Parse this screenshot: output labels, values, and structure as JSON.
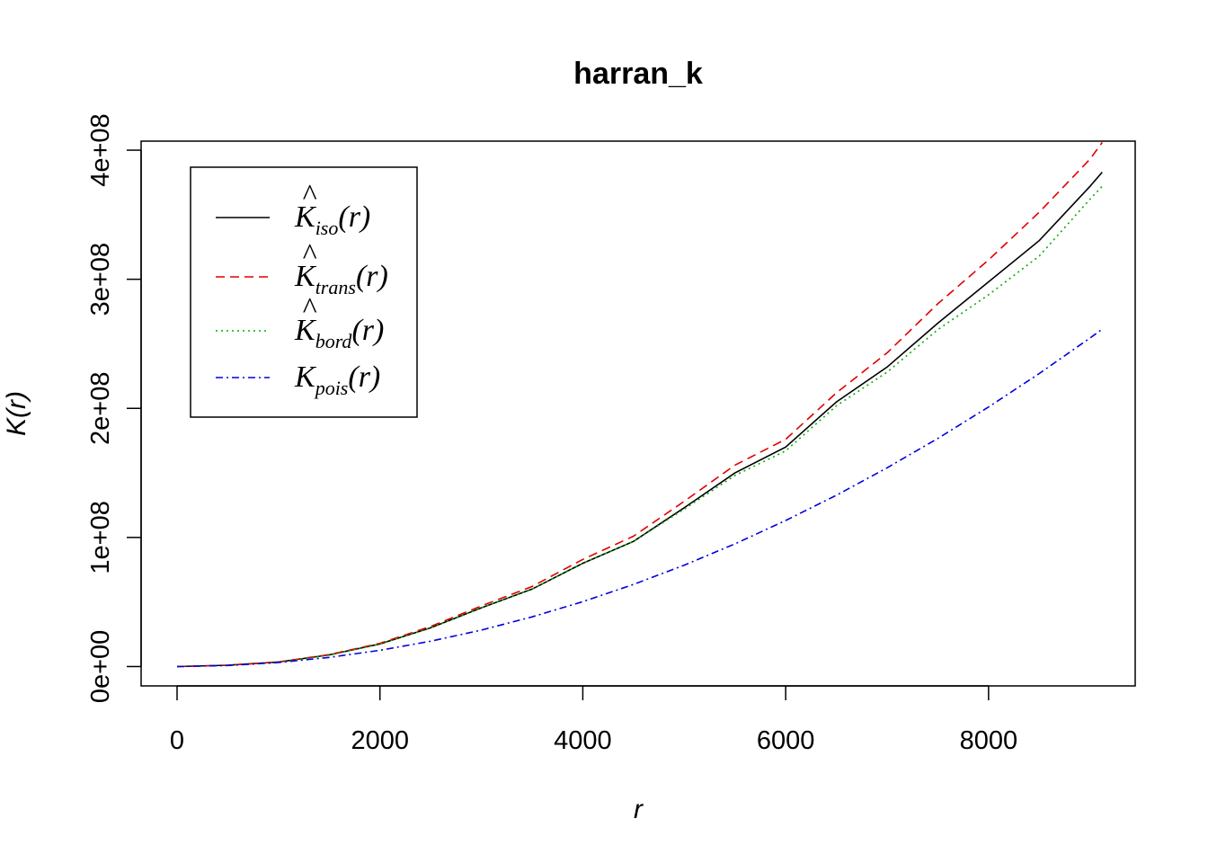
{
  "chart_data": {
    "type": "line",
    "title": "harran_k",
    "xlabel": "r",
    "ylabel": "K(r)",
    "xlim": [
      0,
      9800
    ],
    "ylim": [
      -15000000,
      407000000
    ],
    "x_ticks": [
      0,
      2000,
      4000,
      6000,
      8000
    ],
    "x_tick_labels": [
      "0",
      "2000",
      "4000",
      "6000",
      "8000"
    ],
    "y_ticks": [
      0,
      100000000,
      200000000,
      300000000,
      400000000
    ],
    "y_tick_labels": [
      "0e+00",
      "1e+08",
      "2e+08",
      "3e+08",
      "4e+08"
    ],
    "legend_position": "top-left",
    "x": [
      0,
      500,
      1000,
      1500,
      2000,
      2500,
      3000,
      3500,
      4000,
      4500,
      5000,
      5500,
      6000,
      6500,
      7000,
      7500,
      8000,
      8500,
      9000,
      9120
    ],
    "series": [
      {
        "name": "K̂iso(r)",
        "base": "K",
        "hat": true,
        "sub": "iso",
        "color": "#000000",
        "dash": "",
        "values": [
          0,
          1000000,
          3500000,
          9000000,
          17500000,
          30000000,
          45500000,
          60000000,
          80000000,
          97000000,
          123000000,
          150000000,
          170000000,
          205000000,
          232000000,
          266000000,
          298000000,
          330000000,
          372000000,
          383000000
        ]
      },
      {
        "name": "K̂trans(r)",
        "base": "K",
        "hat": true,
        "sub": "trans",
        "color": "#e00000",
        "dash": "10,6",
        "values": [
          0,
          1000000,
          3600000,
          9200000,
          18000000,
          31000000,
          47000000,
          62000000,
          83000000,
          101000000,
          128000000,
          156000000,
          176000000,
          212000000,
          243000000,
          281000000,
          315000000,
          352000000,
          393000000,
          406000000
        ]
      },
      {
        "name": "K̂bord(r)",
        "base": "K",
        "hat": true,
        "sub": "bord",
        "color": "#00b000",
        "dash": "2,4",
        "values": [
          0,
          1000000,
          3500000,
          8800000,
          17500000,
          30000000,
          45500000,
          60000000,
          80000000,
          97000000,
          122000000,
          148000000,
          167000000,
          202000000,
          228000000,
          261000000,
          288000000,
          318000000,
          362000000,
          372000000
        ]
      },
      {
        "name": "Kpois(r)",
        "base": "K",
        "hat": false,
        "sub": "pois",
        "color": "#0000e0",
        "dash": "8,4,2,4",
        "values": [
          0,
          785000,
          3140000,
          7070000,
          12570000,
          19630000,
          28270000,
          38480000,
          50270000,
          63620000,
          78540000,
          95030000,
          113100000,
          132730000,
          153940000,
          176710000,
          201060000,
          226980000,
          254470000,
          261300000
        ]
      }
    ]
  }
}
